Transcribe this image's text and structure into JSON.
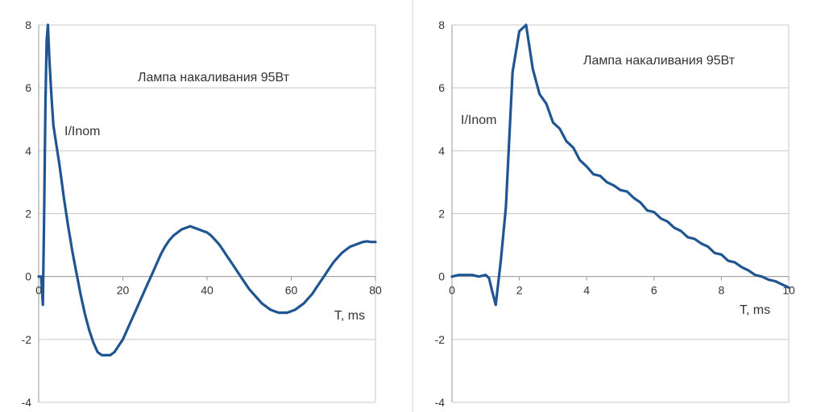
{
  "colors": {
    "series": "#1f5591",
    "divider": "#cfcfcf"
  },
  "chart_data": [
    {
      "type": "line",
      "title": "Лампа накаливания 95Вт",
      "ylabel": "I/Inom",
      "xlabel": "T, ms",
      "xlim": [
        0,
        80
      ],
      "ylim": [
        -4,
        8
      ],
      "xticks": [
        "0",
        "20",
        "40",
        "60",
        "80"
      ],
      "yticks": [
        "-4",
        "-2",
        "0",
        "2",
        "4",
        "6",
        "8"
      ],
      "grid": true,
      "legend": "none",
      "series": [
        {
          "x": [
            0,
            0.6,
            1.0,
            1.3,
            1.6,
            1.9,
            2.2,
            2.5,
            3,
            3.5,
            4.2,
            5,
            6,
            7,
            8,
            9,
            10,
            11,
            12,
            13,
            14,
            15,
            16,
            17,
            18,
            19,
            20,
            21,
            22,
            23,
            24,
            25,
            26,
            27,
            28,
            29,
            30,
            31,
            32,
            33,
            34,
            35,
            36,
            37,
            38,
            39,
            40,
            41,
            42,
            43,
            44,
            45,
            46,
            47,
            48,
            49,
            50,
            51,
            52,
            53,
            54,
            55,
            56,
            57,
            58,
            59,
            60,
            61,
            62,
            63,
            64,
            65,
            66,
            67,
            68,
            69,
            70,
            71,
            72,
            73,
            74,
            75,
            76,
            77,
            78,
            79,
            80
          ],
          "y": [
            0,
            0,
            -0.9,
            2.0,
            5.5,
            7.5,
            8.0,
            7.0,
            5.8,
            4.8,
            4.2,
            3.5,
            2.5,
            1.6,
            0.8,
            0.1,
            -0.6,
            -1.2,
            -1.7,
            -2.1,
            -2.4,
            -2.5,
            -2.5,
            -2.5,
            -2.4,
            -2.2,
            -2.0,
            -1.7,
            -1.4,
            -1.1,
            -0.8,
            -0.5,
            -0.2,
            0.1,
            0.4,
            0.7,
            0.95,
            1.15,
            1.3,
            1.4,
            1.5,
            1.55,
            1.6,
            1.55,
            1.5,
            1.45,
            1.4,
            1.3,
            1.15,
            1.0,
            0.8,
            0.6,
            0.4,
            0.2,
            0.0,
            -0.2,
            -0.4,
            -0.55,
            -0.7,
            -0.85,
            -0.95,
            -1.05,
            -1.1,
            -1.15,
            -1.15,
            -1.15,
            -1.1,
            -1.05,
            -0.95,
            -0.85,
            -0.7,
            -0.55,
            -0.35,
            -0.15,
            0.05,
            0.25,
            0.45,
            0.6,
            0.75,
            0.85,
            0.95,
            1.0,
            1.05,
            1.1,
            1.12,
            1.1,
            1.1
          ]
        }
      ]
    },
    {
      "type": "line",
      "title": "Лампа накаливания 95Вт",
      "ylabel": "I/Inom",
      "xlabel": "T, ms",
      "xlim": [
        0,
        10
      ],
      "ylim": [
        -4,
        8
      ],
      "xticks": [
        "0",
        "2",
        "4",
        "6",
        "8",
        "10"
      ],
      "yticks": [
        "-4",
        "-2",
        "0",
        "2",
        "4",
        "6",
        "8"
      ],
      "grid": true,
      "legend": "none",
      "series": [
        {
          "x": [
            0,
            0.2,
            0.4,
            0.6,
            0.8,
            1.0,
            1.1,
            1.2,
            1.3,
            1.45,
            1.6,
            1.8,
            2.0,
            2.2,
            2.4,
            2.6,
            2.8,
            3.0,
            3.2,
            3.4,
            3.6,
            3.8,
            4.0,
            4.2,
            4.4,
            4.6,
            4.8,
            5.0,
            5.2,
            5.4,
            5.6,
            5.8,
            6.0,
            6.2,
            6.4,
            6.6,
            6.8,
            7.0,
            7.2,
            7.4,
            7.6,
            7.8,
            8.0,
            8.2,
            8.4,
            8.6,
            8.8,
            9.0,
            9.2,
            9.4,
            9.6,
            9.8,
            10.0
          ],
          "y": [
            0,
            0.05,
            0.05,
            0.05,
            0.0,
            0.05,
            -0.05,
            -0.5,
            -0.9,
            0.5,
            2.2,
            6.5,
            7.8,
            8.0,
            6.6,
            5.8,
            5.5,
            4.9,
            4.7,
            4.3,
            4.1,
            3.7,
            3.5,
            3.25,
            3.2,
            3.0,
            2.9,
            2.75,
            2.7,
            2.5,
            2.35,
            2.1,
            2.05,
            1.85,
            1.75,
            1.55,
            1.45,
            1.25,
            1.2,
            1.05,
            0.95,
            0.75,
            0.7,
            0.5,
            0.45,
            0.3,
            0.2,
            0.05,
            0.0,
            -0.1,
            -0.15,
            -0.25,
            -0.35
          ]
        }
      ]
    }
  ]
}
